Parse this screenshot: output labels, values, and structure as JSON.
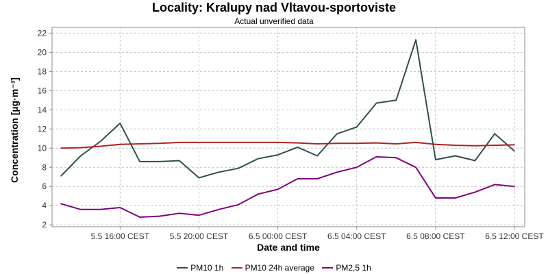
{
  "title": "Locality: Kralupy nad Vltavou-sportoviste",
  "subtitle": "Actual unverified data",
  "chart_data": {
    "type": "line",
    "xlabel": "Date and time",
    "ylabel": "Concentration [µg·m⁻³]",
    "ylim": [
      1.8,
      22.6
    ],
    "yticks": [
      2,
      4,
      6,
      8,
      10,
      12,
      14,
      16,
      18,
      20,
      22
    ],
    "x": [
      "5.5 13:00 CEST",
      "5.5 14:00 CEST",
      "5.5 15:00 CEST",
      "5.5 16:00 CEST",
      "5.5 17:00 CEST",
      "5.5 18:00 CEST",
      "5.5 19:00 CEST",
      "5.5 20:00 CEST",
      "5.5 21:00 CEST",
      "5.5 22:00 CEST",
      "5.5 23:00 CEST",
      "6.5 00:00 CEST",
      "6.5 01:00 CEST",
      "6.5 02:00 CEST",
      "6.5 03:00 CEST",
      "6.5 04:00 CEST",
      "6.5 05:00 CEST",
      "6.5 06:00 CEST",
      "6.5 07:00 CEST",
      "6.5 08:00 CEST",
      "6.5 09:00 CEST",
      "6.5 10:00 CEST",
      "6.5 11:00 CEST",
      "6.5 12:00 CEST"
    ],
    "xticks": [
      "5.5 16:00 CEST",
      "5.5 20:00 CEST",
      "6.5 00:00 CEST",
      "6.5 04:00 CEST",
      "6.5 08:00 CEST",
      "6.5 12:00 CEST"
    ],
    "grid": true,
    "legend_position": "bottom",
    "series": [
      {
        "name": "PM10 1h",
        "color": "#2f4f4f",
        "values": [
          7.1,
          9.2,
          10.7,
          12.6,
          8.6,
          8.6,
          8.7,
          6.9,
          7.5,
          7.9,
          8.9,
          9.3,
          10.1,
          9.2,
          11.5,
          12.2,
          14.7,
          15.0,
          21.3,
          8.8,
          9.2,
          8.7,
          11.5,
          9.7
        ]
      },
      {
        "name": "PM10 24h average",
        "color": "#b22222",
        "values": [
          10.0,
          10.05,
          10.2,
          10.4,
          10.45,
          10.5,
          10.6,
          10.6,
          10.6,
          10.6,
          10.6,
          10.6,
          10.55,
          10.45,
          10.5,
          10.5,
          10.55,
          10.45,
          10.6,
          10.4,
          10.3,
          10.25,
          10.3,
          10.35
        ]
      },
      {
        "name": "PM2,5 1h",
        "color": "#800080",
        "values": [
          4.2,
          3.6,
          3.6,
          3.8,
          2.8,
          2.9,
          3.2,
          3.0,
          3.6,
          4.1,
          5.2,
          5.7,
          6.8,
          6.8,
          7.5,
          8.0,
          9.1,
          9.0,
          8.0,
          4.8,
          4.8,
          5.4,
          6.2,
          6.0
        ]
      }
    ]
  }
}
